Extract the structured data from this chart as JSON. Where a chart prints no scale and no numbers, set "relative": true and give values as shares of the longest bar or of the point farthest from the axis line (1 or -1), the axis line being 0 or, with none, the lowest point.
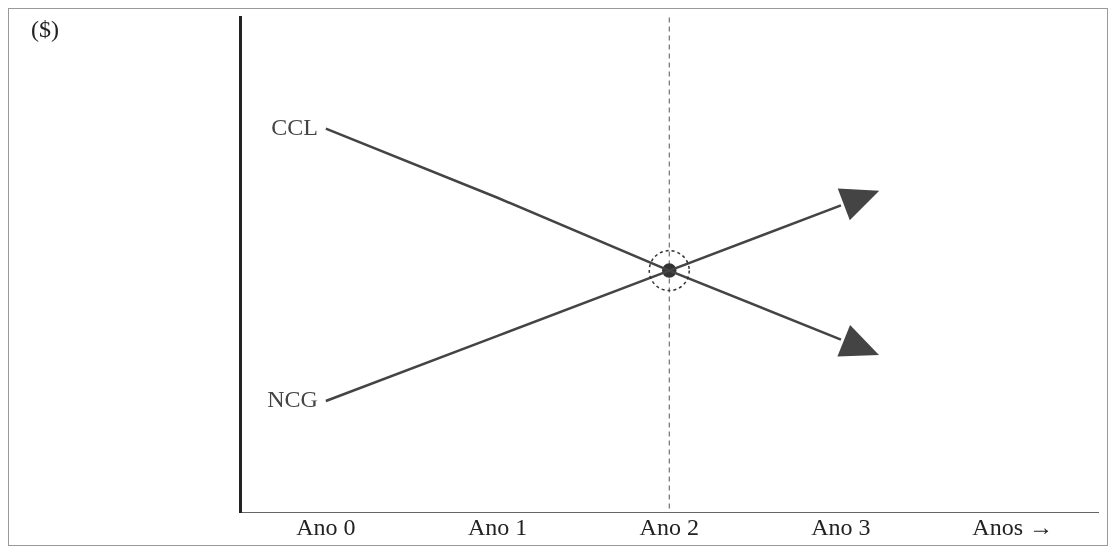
{
  "chart_data": {
    "type": "line",
    "relative": true,
    "categories": [
      "Ano 0",
      "Ano 1",
      "Ano 2",
      "Ano 3",
      "Anos →"
    ],
    "series": [
      {
        "name": "CCL",
        "color": "#444444",
        "values": [
          1,
          0.82,
          0.63,
          0.45,
          null
        ]
      },
      {
        "name": "NCG",
        "color": "#444444",
        "values": [
          0.29,
          0.46,
          0.63,
          0.8,
          null
        ]
      },
      {
        "type": "scatter",
        "color": "#333333",
        "x": [
          "Ano 2"
        ],
        "values": [
          0.63
        ],
        "marker": "circle"
      }
    ],
    "ref_lines": [
      {
        "axis": "x",
        "value": "Ano 2",
        "color": "#555555",
        "line_style": "dashed"
      }
    ],
    "annotations": [
      "($)"
    ],
    "grid": false,
    "legend": false,
    "line_style": "solid"
  }
}
